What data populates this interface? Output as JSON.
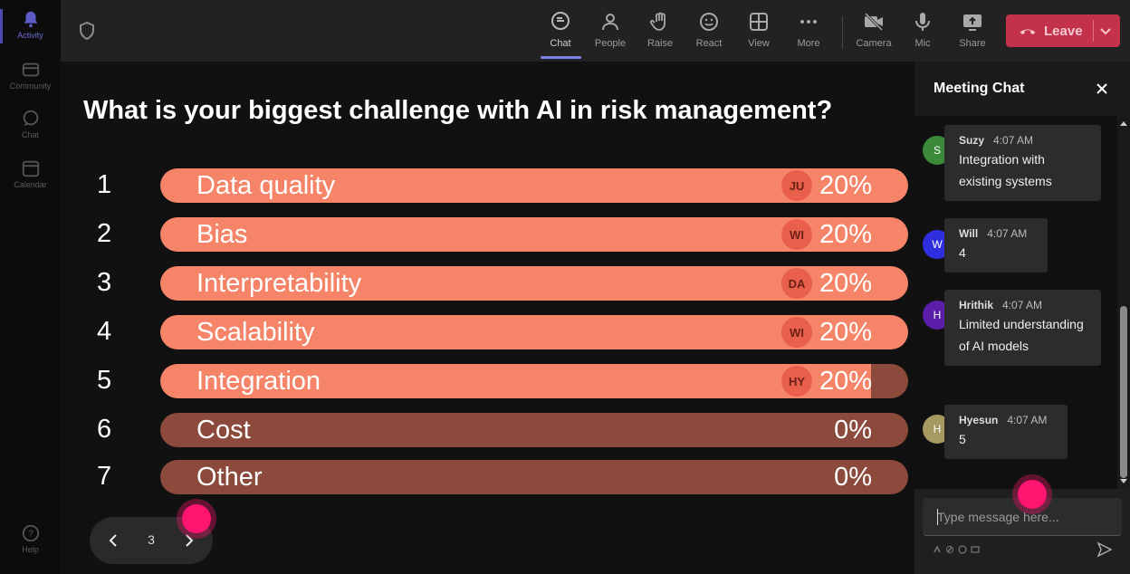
{
  "rail": {
    "items": [
      {
        "label": "Activity",
        "icon": "bell-icon",
        "active": true
      },
      {
        "label": "Community",
        "icon": "community-icon",
        "active": false
      },
      {
        "label": "Chat",
        "icon": "chat-icon",
        "active": false
      },
      {
        "label": "Calendar",
        "icon": "calendar-icon",
        "active": false
      }
    ],
    "help_label": "Help"
  },
  "toolbar": {
    "chat": "Chat",
    "people": "People",
    "raise": "Raise",
    "react": "React",
    "view": "View",
    "more": "More",
    "camera": "Camera",
    "mic": "Mic",
    "share": "Share",
    "leave": "Leave"
  },
  "poll": {
    "question": "What is your biggest challenge with AI in risk management?",
    "options": [
      {
        "num": "1",
        "label": "Data quality",
        "percent": "20%",
        "voter": "JU",
        "fill": 1.0
      },
      {
        "num": "2",
        "label": "Bias",
        "percent": "20%",
        "voter": "WI",
        "fill": 1.0
      },
      {
        "num": "3",
        "label": "Interpretability",
        "percent": "20%",
        "voter": "DA",
        "fill": 1.0
      },
      {
        "num": "4",
        "label": "Scalability",
        "percent": "20%",
        "voter": "WI",
        "fill": 1.0
      },
      {
        "num": "5",
        "label": "Integration",
        "percent": "20%",
        "voter": "HY",
        "fill": 0.95
      },
      {
        "num": "6",
        "label": "Cost",
        "percent": "0%",
        "voter": "",
        "fill": 0
      },
      {
        "num": "7",
        "label": "Other",
        "percent": "0%",
        "voter": "",
        "fill": 0
      }
    ],
    "page": "3"
  },
  "chat": {
    "title": "Meeting Chat",
    "messages": [
      {
        "initial": "S",
        "name": "Suzy",
        "time": "4:07 AM",
        "text": "Integration with existing systems",
        "color": "#3a8a3a"
      },
      {
        "initial": "W",
        "name": "Will",
        "time": "4:07 AM",
        "text": "4",
        "color": "#2f2fe0"
      },
      {
        "initial": "H",
        "name": "Hrithik",
        "time": "4:07 AM",
        "text": "Limited understanding of AI models",
        "color": "#5a1ea8"
      },
      {
        "initial": "H",
        "name": "Hyesun",
        "time": "4:07 AM",
        "text": "5",
        "color": "#a69a62"
      }
    ],
    "compose_placeholder": "Type message here..."
  },
  "colors": {
    "bar_fill": "#f58468",
    "bar_track": "#8b4a3c",
    "leave": "#c4314b",
    "accent": "#7b83eb"
  }
}
